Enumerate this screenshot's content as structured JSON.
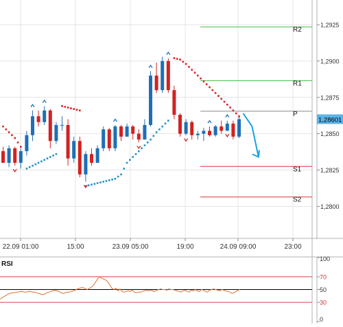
{
  "chart_data": [
    {
      "type": "candlestick",
      "ylim": [
        1.2778,
        1.2942
      ],
      "y_ticks": [
        "1,2925",
        "1,2900",
        "1,2875",
        "1,2850",
        "1,2825",
        "1,2800"
      ],
      "x_ticks": [
        "22.09 01:00",
        "15:00",
        "23.09 05:00",
        "19:00",
        "24.09 09:00",
        "23:00"
      ],
      "grid": true,
      "current_price_label": "1,28601",
      "current_price": 1.286,
      "colors": {
        "bull": "#1f6fb5",
        "bear": "#d22222",
        "sar_up": "#1f8fc8",
        "sar_down": "#e02020",
        "resistance": "#3cbf3c",
        "support": "#e03030",
        "pivot": "#888888",
        "arrow": "#1aa3e0",
        "price_tag": "#5ab4e8"
      },
      "levels": [
        {
          "label": "R2",
          "value": 1.29235
        },
        {
          "label": "R1",
          "value": 1.28865
        },
        {
          "label": "P",
          "value": 1.28655
        },
        {
          "label": "S1",
          "value": 1.28275
        },
        {
          "label": "S2",
          "value": 1.28065
        }
      ],
      "candles": [
        [
          1.2838,
          1.2841,
          1.283,
          1.283
        ],
        [
          1.283,
          1.2842,
          1.2827,
          1.284
        ],
        [
          1.284,
          1.2841,
          1.2828,
          1.283
        ],
        [
          1.283,
          1.284,
          1.2826,
          1.2838
        ],
        [
          1.2838,
          1.2852,
          1.2835,
          1.2849
        ],
        [
          1.2849,
          1.2866,
          1.2845,
          1.2862
        ],
        [
          1.2862,
          1.2866,
          1.2855,
          1.2858
        ],
        [
          1.2858,
          1.2869,
          1.2856,
          1.2866
        ],
        [
          1.2866,
          1.2867,
          1.284,
          1.2845
        ],
        [
          1.2845,
          1.2858,
          1.2843,
          1.2856
        ],
        [
          1.2856,
          1.2862,
          1.2852,
          1.2856
        ],
        [
          1.2856,
          1.286,
          1.2828,
          1.2833
        ],
        [
          1.2833,
          1.2848,
          1.283,
          1.2845
        ],
        [
          1.2845,
          1.2848,
          1.282,
          1.2822
        ],
        [
          1.2822,
          1.2838,
          1.2817,
          1.2836
        ],
        [
          1.2836,
          1.284,
          1.2828,
          1.283
        ],
        [
          1.283,
          1.2842,
          1.283,
          1.284
        ],
        [
          1.284,
          1.2855,
          1.2838,
          1.2853
        ],
        [
          1.2853,
          1.2854,
          1.2838,
          1.284
        ],
        [
          1.284,
          1.2856,
          1.2838,
          1.2855
        ],
        [
          1.2855,
          1.2856,
          1.2845,
          1.2848
        ],
        [
          1.2848,
          1.2857,
          1.2848,
          1.2855
        ],
        [
          1.2855,
          1.2856,
          1.2846,
          1.285
        ],
        [
          1.285,
          1.2853,
          1.2844,
          1.2846
        ],
        [
          1.2846,
          1.286,
          1.2846,
          1.2856
        ],
        [
          1.2856,
          1.2893,
          1.2855,
          1.289
        ],
        [
          1.289,
          1.2899,
          1.2878,
          1.288
        ],
        [
          1.288,
          1.2903,
          1.2878,
          1.29
        ],
        [
          1.29,
          1.2902,
          1.2878,
          1.288
        ],
        [
          1.288,
          1.2883,
          1.286,
          1.2863
        ],
        [
          1.2863,
          1.2864,
          1.2848,
          1.285
        ],
        [
          1.285,
          1.286,
          1.2849,
          1.2858
        ],
        [
          1.2858,
          1.2859,
          1.2846,
          1.2849
        ],
        [
          1.2849,
          1.2852,
          1.2846,
          1.285
        ],
        [
          1.285,
          1.2854,
          1.2845,
          1.2852
        ],
        [
          1.2852,
          1.2855,
          1.2848,
          1.2849
        ],
        [
          1.2849,
          1.2856,
          1.2848,
          1.2855
        ],
        [
          1.2855,
          1.2859,
          1.285,
          1.2852
        ],
        [
          1.2852,
          1.2859,
          1.2852,
          1.2857
        ],
        [
          1.2857,
          1.2859,
          1.2846,
          1.2848
        ],
        [
          1.2848,
          1.2862,
          1.2847,
          1.286
        ]
      ],
      "sar": [
        1.2855,
        1.2851,
        1.2847,
        1.2841,
        1.2826,
        1.2828,
        1.283,
        1.2832,
        1.2834,
        1.2836,
        1.2869,
        1.2868,
        1.2867,
        1.2866,
        1.2814,
        1.2815,
        1.2816,
        1.2817,
        1.2818,
        1.2819,
        1.2822,
        1.283,
        1.2834,
        1.2838,
        1.2842,
        1.2846,
        1.2851,
        1.2855,
        1.2859,
        1.2902,
        1.2901,
        1.2898,
        1.2894,
        1.289,
        1.2886,
        1.2882,
        1.2878,
        1.2874,
        1.287,
        1.2866,
        1.2862
      ],
      "fractal_up": [
        5,
        7,
        19,
        25,
        28,
        35,
        38
      ],
      "fractal_down": [
        2,
        14,
        23,
        31,
        38
      ],
      "forecast_arrow": [
        [
          40.7,
          1.2864
        ],
        [
          42.2,
          1.2855
        ],
        [
          43.3,
          1.2834
        ]
      ]
    },
    {
      "type": "line",
      "title": "RSI",
      "ylim": [
        0,
        100
      ],
      "y_ticks": [
        "100",
        "70",
        "50",
        "30",
        "0"
      ],
      "levels": [
        70,
        50,
        30
      ],
      "colors": {
        "line": "#e07030",
        "level_70": "#e04040",
        "level_50": "#000000",
        "level_30": "#e04040"
      },
      "values": [
        35,
        37,
        39,
        41,
        43,
        44,
        45,
        45,
        46,
        46,
        47,
        47,
        46,
        46,
        47,
        47,
        46,
        46,
        45,
        44,
        43,
        42,
        43,
        45,
        46,
        47,
        48,
        49,
        48,
        47,
        45,
        44,
        45,
        46,
        46,
        47,
        48,
        49,
        51,
        52,
        53,
        53,
        51,
        50,
        52,
        54,
        57,
        62,
        67,
        70,
        68,
        66,
        65,
        62,
        57,
        52,
        50,
        52,
        48,
        51,
        47,
        46,
        47,
        48,
        47,
        49,
        46,
        45,
        46,
        46,
        47,
        48,
        49,
        48,
        49,
        48,
        47,
        49,
        50,
        51,
        50,
        50,
        49,
        51,
        50,
        50,
        49,
        48,
        47,
        46,
        48,
        49,
        47,
        46,
        49,
        48,
        50,
        48,
        47,
        50,
        49,
        47,
        46,
        49,
        50,
        51,
        50,
        49,
        48,
        50,
        49,
        48,
        47,
        46,
        44,
        45,
        47,
        49,
        50
      ]
    }
  ]
}
